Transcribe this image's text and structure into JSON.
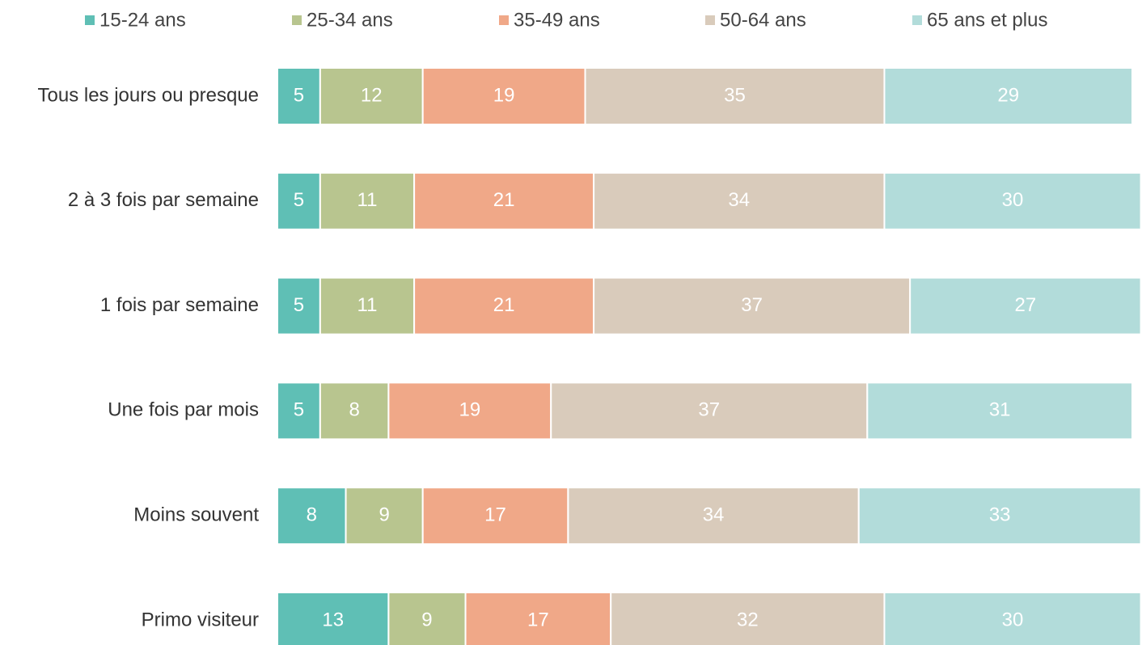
{
  "chart_data": {
    "type": "stacked-barh",
    "categories": [
      "Tous les jours ou presque",
      "2 à 3 fois par semaine",
      "1 fois par semaine",
      "Une fois par mois",
      "Moins souvent",
      "Primo visiteur"
    ],
    "series": [
      {
        "name": "15-24 ans",
        "color": "#5fbfb5",
        "values": [
          5,
          5,
          5,
          5,
          8,
          13
        ]
      },
      {
        "name": "25-34 ans",
        "color": "#b8c58f",
        "values": [
          12,
          11,
          11,
          8,
          9,
          9
        ]
      },
      {
        "name": "35-49 ans",
        "color": "#f0a888",
        "values": [
          19,
          21,
          21,
          19,
          17,
          17
        ]
      },
      {
        "name": "50-64 ans",
        "color": "#d9cbbb",
        "values": [
          35,
          34,
          37,
          37,
          34,
          32
        ]
      },
      {
        "name": "65 ans et plus",
        "color": "#b2dcda",
        "values": [
          29,
          30,
          27,
          31,
          33,
          30
        ]
      }
    ],
    "xlim": [
      0,
      100
    ],
    "legend": "top"
  }
}
